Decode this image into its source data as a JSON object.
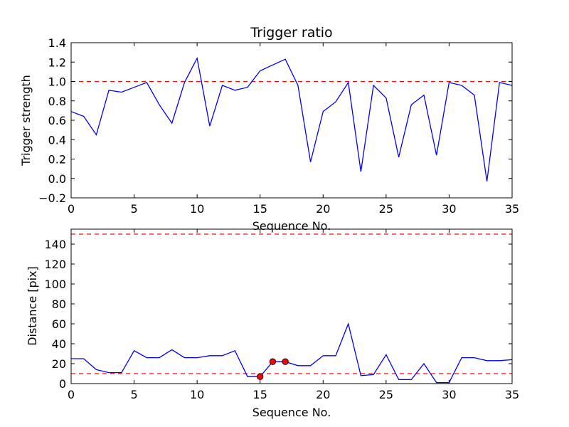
{
  "chart_data": [
    {
      "type": "line",
      "title": "Trigger ratio",
      "xlabel": "Sequence No.",
      "ylabel": "Trigger strength",
      "xlim": [
        0,
        35
      ],
      "ylim": [
        -0.2,
        1.4
      ],
      "x_ticks": [
        "0",
        "5",
        "10",
        "15",
        "20",
        "25",
        "30",
        "35"
      ],
      "y_ticks": [
        "−0.2",
        "0.0",
        "0.2",
        "0.4",
        "0.6",
        "0.8",
        "1.0",
        "1.2",
        "1.4"
      ],
      "grid": false,
      "colors": {
        "series": "#0000ff",
        "threshold": "#ff0000"
      },
      "thresholds": [
        1.0
      ],
      "series": [
        {
          "x": [
            0,
            1,
            2,
            3,
            4,
            5,
            6,
            7,
            8,
            9,
            10,
            11,
            12,
            13,
            14,
            15,
            16,
            17,
            18,
            19,
            20,
            21,
            22,
            23,
            24,
            25,
            26,
            27,
            28,
            29,
            30,
            31,
            32,
            33,
            34,
            35
          ],
          "values": [
            0.69,
            0.64,
            0.45,
            0.91,
            0.89,
            0.94,
            0.99,
            0.76,
            0.57,
            0.99,
            1.24,
            0.54,
            0.96,
            0.91,
            0.94,
            1.11,
            1.17,
            1.23,
            0.96,
            0.17,
            0.69,
            0.79,
            0.99,
            0.07,
            0.96,
            0.83,
            0.22,
            0.76,
            0.86,
            0.24,
            0.99,
            0.96,
            0.86,
            -0.03,
            0.99,
            0.96
          ]
        }
      ]
    },
    {
      "type": "line",
      "title": "",
      "xlabel": "Sequence No.",
      "ylabel": "Distance [pix]",
      "xlim": [
        0,
        35
      ],
      "ylim": [
        0,
        155
      ],
      "x_ticks": [
        "0",
        "5",
        "10",
        "15",
        "20",
        "25",
        "30",
        "35"
      ],
      "y_ticks": [
        "0",
        "20",
        "40",
        "60",
        "80",
        "100",
        "120",
        "140"
      ],
      "grid": false,
      "colors": {
        "series": "#0000ff",
        "threshold": "#ff0000",
        "marker": "#ff0000"
      },
      "thresholds": [
        10,
        150
      ],
      "series": [
        {
          "x": [
            0,
            1,
            2,
            3,
            4,
            5,
            6,
            7,
            8,
            9,
            10,
            11,
            12,
            13,
            14,
            15,
            16,
            17,
            18,
            19,
            20,
            21,
            22,
            23,
            24,
            25,
            26,
            27,
            28,
            29,
            30,
            31,
            32,
            33,
            34,
            35
          ],
          "values": [
            25,
            25,
            14,
            11,
            11,
            33,
            26,
            26,
            34,
            26,
            26,
            28,
            28,
            33,
            7,
            7,
            22,
            22,
            18,
            18,
            28,
            28,
            60,
            8,
            9,
            29,
            4,
            4,
            20,
            1,
            1,
            26,
            26,
            23,
            23,
            24
          ]
        }
      ],
      "markers": {
        "x": [
          15,
          16,
          17
        ],
        "values": [
          7,
          22,
          22
        ]
      }
    }
  ]
}
